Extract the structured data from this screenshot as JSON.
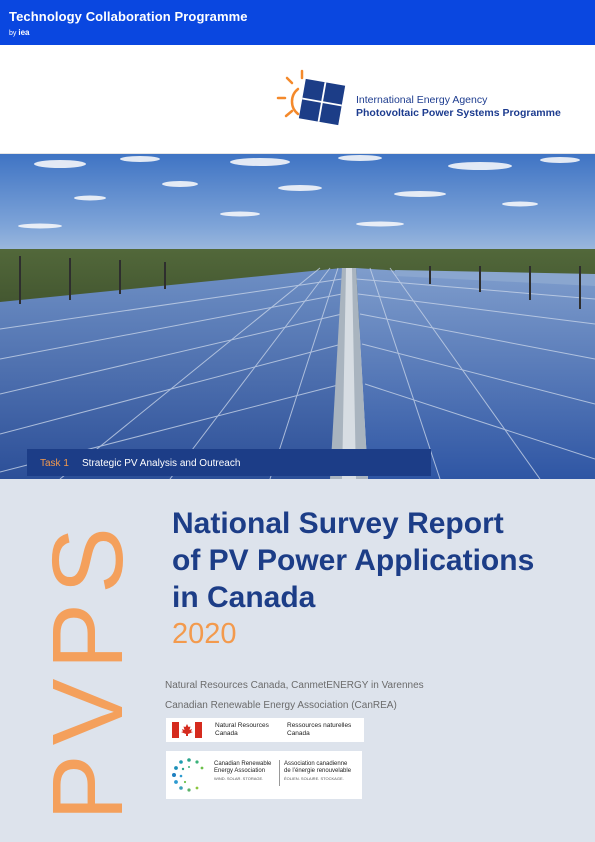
{
  "topbar": {
    "title": "Technology Collaboration Programme",
    "by": "by",
    "iea": "iea"
  },
  "logo": {
    "line1": "International Energy Agency",
    "line2": "Photovoltaic Power Systems Programme"
  },
  "task": {
    "label": "Task 1",
    "name": "Strategic PV Analysis and Outreach"
  },
  "pvps_mark": "PVPS",
  "report": {
    "title_lines": [
      "National Survey Report",
      "of PV Power Applications",
      "in Canada"
    ],
    "year": "2020"
  },
  "authors": [
    "Natural Resources Canada, CanmetENERGY in Varennes",
    "Canadian Renewable Energy Association (CanREA)"
  ],
  "nrcan_logo": {
    "en1": "Natural Resources",
    "en2": "Canada",
    "fr1": "Ressources naturelles",
    "fr2": "Canada"
  },
  "canrea_logo": {
    "en1": "Canadian Renewable",
    "en2": "Energy Association",
    "en3": "WIND. SOLAR. STORAGE.",
    "fr1": "Association canadienne",
    "fr2": "de l’énergie renouvelable",
    "fr3": "ÉOLIEN. SOLAIRE. STOCKAGE."
  },
  "colors": {
    "blue": "#0a47e0",
    "navy": "#1c3d87",
    "orange": "#f39a4d",
    "background": "#dde3ec"
  }
}
